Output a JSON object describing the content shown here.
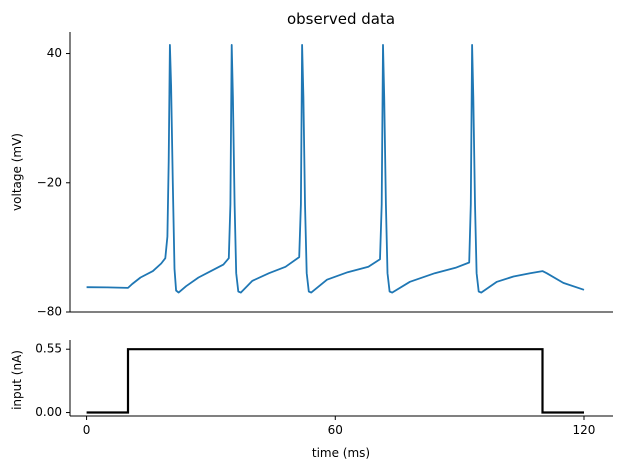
{
  "chart_data": [
    {
      "type": "line",
      "title": "observed data",
      "xlabel": "",
      "ylabel": "voltage (mV)",
      "xlim": [
        -4,
        127
      ],
      "ylim": [
        -80,
        50
      ],
      "yticks": [
        40,
        -20,
        -80
      ],
      "ytick_labels": [
        "40",
        "−20",
        "−80"
      ],
      "series": [
        {
          "name": "voltage",
          "color": "#1f77b4",
          "points": [
            [
              0,
              -68.5
            ],
            [
              5,
              -68.6
            ],
            [
              10,
              -68.8
            ],
            [
              11,
              -67
            ],
            [
              13,
              -64
            ],
            [
              16,
              -61
            ],
            [
              18,
              -57.5
            ],
            [
              19,
              -55
            ],
            [
              19.5,
              -45
            ],
            [
              19.8,
              -10
            ],
            [
              20.1,
              44
            ],
            [
              20.4,
              25
            ],
            [
              20.8,
              -20
            ],
            [
              21.2,
              -60
            ],
            [
              21.6,
              -70
            ],
            [
              22.2,
              -71
            ],
            [
              24,
              -68
            ],
            [
              27,
              -64
            ],
            [
              30,
              -61
            ],
            [
              33,
              -58
            ],
            [
              34.3,
              -55
            ],
            [
              34.7,
              -30
            ],
            [
              35,
              44
            ],
            [
              35.3,
              20
            ],
            [
              35.7,
              -30
            ],
            [
              36.1,
              -62
            ],
            [
              36.6,
              -70.5
            ],
            [
              37.2,
              -71
            ],
            [
              40,
              -65.5
            ],
            [
              44,
              -62
            ],
            [
              48,
              -59
            ],
            [
              51.3,
              -54.5
            ],
            [
              51.7,
              -30
            ],
            [
              52,
              44
            ],
            [
              52.3,
              20
            ],
            [
              52.7,
              -30
            ],
            [
              53.1,
              -62
            ],
            [
              53.6,
              -70.5
            ],
            [
              54.2,
              -71
            ],
            [
              58,
              -65
            ],
            [
              63,
              -61.5
            ],
            [
              68,
              -59
            ],
            [
              70.8,
              -55.5
            ],
            [
              71.2,
              -30
            ],
            [
              71.5,
              44
            ],
            [
              71.8,
              20
            ],
            [
              72.2,
              -30
            ],
            [
              72.6,
              -62
            ],
            [
              73.1,
              -70.5
            ],
            [
              73.7,
              -71
            ],
            [
              78,
              -66
            ],
            [
              84,
              -62
            ],
            [
              89,
              -59.5
            ],
            [
              92.3,
              -57
            ],
            [
              92.7,
              -30
            ],
            [
              93,
              44
            ],
            [
              93.3,
              20
            ],
            [
              93.7,
              -30
            ],
            [
              94.1,
              -62
            ],
            [
              94.6,
              -70.5
            ],
            [
              95.2,
              -71
            ],
            [
              99,
              -66
            ],
            [
              103,
              -63.5
            ],
            [
              107,
              -62
            ],
            [
              110,
              -61
            ],
            [
              111,
              -62
            ],
            [
              115,
              -66.5
            ],
            [
              120,
              -69.7
            ]
          ]
        }
      ]
    },
    {
      "type": "line",
      "title": "",
      "xlabel": "time (ms)",
      "ylabel": "input (nA)",
      "xlim": [
        -4,
        127
      ],
      "ylim": [
        -0.03,
        0.63
      ],
      "xticks": [
        0,
        60,
        120
      ],
      "xtick_labels": [
        "0",
        "60",
        "120"
      ],
      "yticks": [
        0.55,
        0.0
      ],
      "ytick_labels": [
        "0.55",
        "0.00"
      ],
      "series": [
        {
          "name": "input",
          "color": "#000000",
          "points": [
            [
              0,
              0
            ],
            [
              10,
              0
            ],
            [
              10,
              0.55
            ],
            [
              110,
              0.55
            ],
            [
              110,
              0
            ],
            [
              120,
              0
            ]
          ]
        }
      ]
    }
  ]
}
